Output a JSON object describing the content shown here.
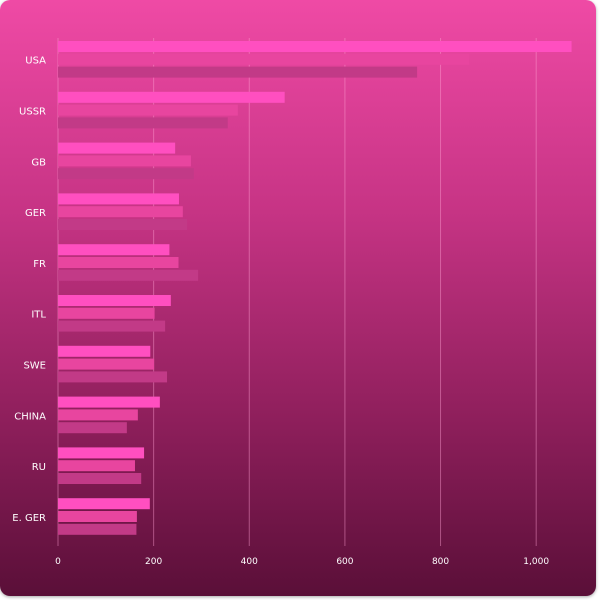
{
  "chart_data": {
    "type": "bar",
    "orientation": "horizontal",
    "categories": [
      "USA",
      "USSR",
      "GB",
      "GER",
      "FR",
      "ITL",
      "SWE",
      "CHINA",
      "RU",
      "E. GER"
    ],
    "series": [
      {
        "values": [
          1074,
          474,
          245,
          253,
          233,
          236,
          193,
          213,
          180,
          192
        ]
      },
      {
        "values": [
          860,
          376,
          278,
          261,
          252,
          202,
          201,
          167,
          161,
          165
        ]
      },
      {
        "values": [
          751,
          355,
          284,
          270,
          293,
          224,
          228,
          144,
          174,
          164
        ]
      }
    ],
    "xlim": [
      0,
      1100
    ],
    "xticks": [
      0,
      200,
      400,
      600,
      800,
      1000
    ],
    "xtick_labels": [
      "0",
      "200",
      "400",
      "600",
      "800",
      "1,000"
    ],
    "grid": true,
    "colors": [
      "#ff4fc0",
      "#e8459f",
      "#c23a87"
    ],
    "gridline_color": "#ff9fd3"
  }
}
